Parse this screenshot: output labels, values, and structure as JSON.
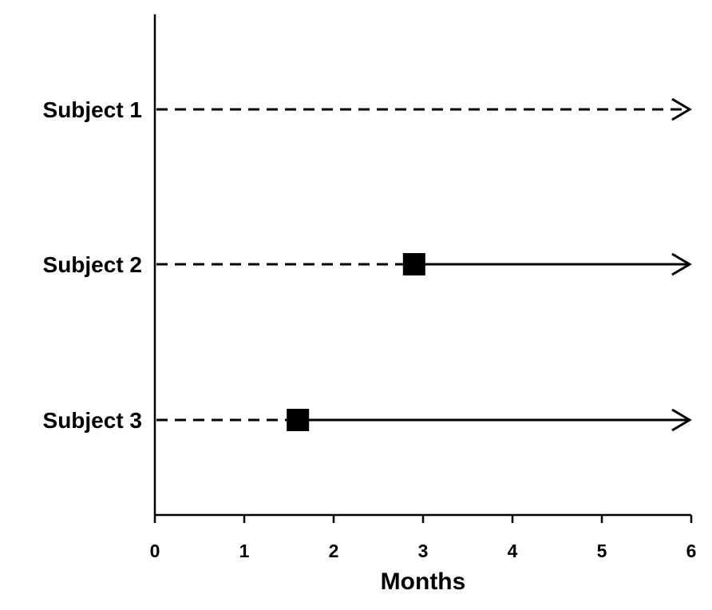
{
  "chart_data": {
    "type": "scatter",
    "xlabel": "Months",
    "xlim": [
      0,
      6
    ],
    "x_ticks": [
      "0",
      "1",
      "2",
      "3",
      "4",
      "5",
      "6"
    ],
    "grid": false,
    "subjects": [
      {
        "label": "Subject 1",
        "event_month": null,
        "end_month": 6,
        "arrow": true
      },
      {
        "label": "Subject 2",
        "event_month": 2.9,
        "end_month": 6,
        "arrow": true
      },
      {
        "label": "Subject 3",
        "event_month": 1.6,
        "end_month": 6,
        "arrow": true
      }
    ],
    "segment_styles": {
      "before_event": "dashed",
      "after_event": "solid"
    },
    "marker": "filled-square",
    "colors": {
      "line": "#000000",
      "marker": "#000000"
    }
  }
}
